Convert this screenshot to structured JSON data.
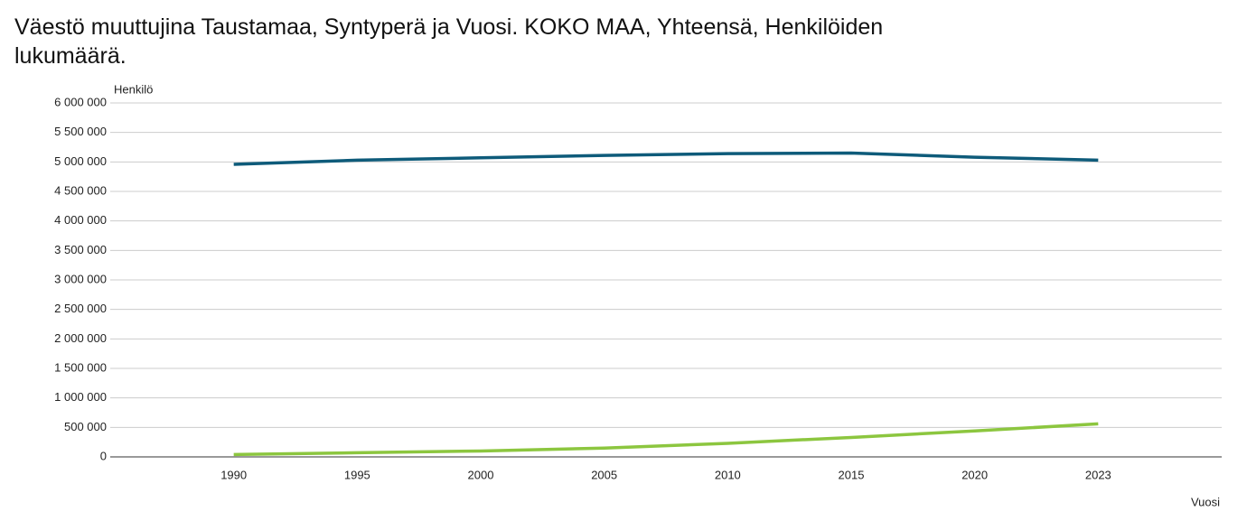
{
  "chart_data": {
    "type": "line",
    "title": "Väestö muuttujina Taustamaa, Syntyperä ja Vuosi. KOKO MAA, Yhteensä, Henkilöiden lukumäärä.",
    "y_label": "Henkilö",
    "x_label": "Vuosi",
    "categories": [
      "1990",
      "1995",
      "2000",
      "2005",
      "2010",
      "2015",
      "2020",
      "2023"
    ],
    "series": [
      {
        "color": "#0e5b7a",
        "values": [
          4960000,
          5030000,
          5070000,
          5110000,
          5140000,
          5150000,
          5080000,
          5030000
        ]
      },
      {
        "color": "#8cc63f",
        "values": [
          40000,
          70000,
          100000,
          150000,
          230000,
          330000,
          440000,
          560000
        ]
      }
    ],
    "ylim": [
      0,
      6000000
    ],
    "yticks": [
      0,
      {
        "value": 500000,
        "label": "500 000"
      },
      {
        "value": 1000000,
        "label": "1 000 000"
      },
      {
        "value": 1500000,
        "label": "1 500 000"
      },
      {
        "value": 2000000,
        "label": "2 000 000"
      },
      {
        "value": 2500000,
        "label": "2 500 000"
      },
      {
        "value": 3000000,
        "label": "3 000 000"
      },
      {
        "value": 3500000,
        "label": "3 500 000"
      },
      {
        "value": 4000000,
        "label": "4 000 000"
      },
      {
        "value": 4500000,
        "label": "4 500 000"
      },
      {
        "value": 5000000,
        "label": "5 000 000"
      },
      {
        "value": 5500000,
        "label": "5 500 000"
      },
      {
        "value": 6000000,
        "label": "6 000 000"
      }
    ],
    "grid": true
  }
}
